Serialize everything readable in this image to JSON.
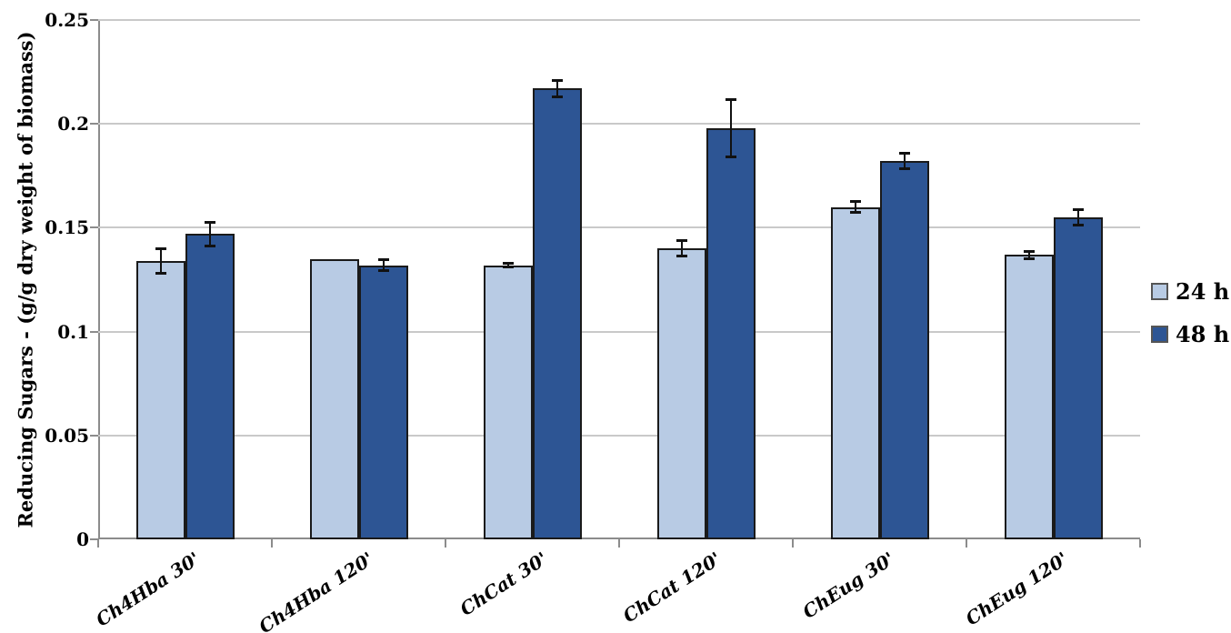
{
  "chart_data": {
    "type": "bar",
    "title": "",
    "xlabel": "",
    "ylabel": "Reducing Sugars - (g/g dry weight of biomass)",
    "categories": [
      "Ch4Hba 30'",
      "Ch4Hba 120'",
      "ChCat 30'",
      "ChCat 120'",
      "ChEug 30'",
      "ChEug 120'"
    ],
    "series": [
      {
        "name": "24 h",
        "color": "#b8cbe4",
        "values": [
          0.134,
          0.135,
          0.132,
          0.14,
          0.16,
          0.137
        ],
        "errors": [
          0.006,
          0,
          0.001,
          0.004,
          0.003,
          0.002
        ]
      },
      {
        "name": "48 h",
        "color": "#2d5594",
        "values": [
          0.147,
          0.132,
          0.217,
          0.198,
          0.182,
          0.155
        ],
        "errors": [
          0.006,
          0.003,
          0.004,
          0.014,
          0.004,
          0.004
        ]
      }
    ],
    "ylim": [
      0,
      0.25
    ],
    "ytick_values": [
      0,
      0.05,
      0.1,
      0.15,
      0.2,
      0.25
    ],
    "ytick_labels": [
      "0",
      "0.05",
      "0.1",
      "0.15",
      "0.2",
      "0.25"
    ],
    "grid": "horizontal",
    "legend_position": "right",
    "error_bars": true,
    "colors": {
      "gridline": "#c9c9c9",
      "axis": "#8c8c8c",
      "bar_border": "#1a1a1a",
      "error_bar": "#111111",
      "text": "#000000"
    }
  }
}
